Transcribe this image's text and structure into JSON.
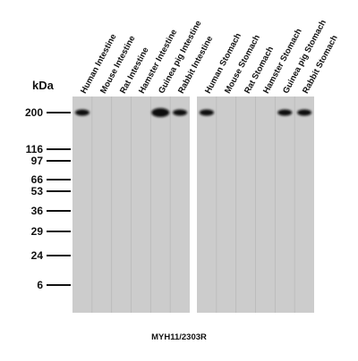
{
  "caption": "MYH11/2303R",
  "unit_label": "kDa",
  "markers": [
    "200",
    "116",
    "97",
    "66",
    "53",
    "36",
    "29",
    "24",
    "6"
  ],
  "panels": [
    {
      "name": "intestine",
      "lanes": [
        {
          "label": "Human Intestine",
          "band_200": "strong"
        },
        {
          "label": "Mouse Intestine",
          "band_200": "none"
        },
        {
          "label": "Rat Intestine",
          "band_200": "none"
        },
        {
          "label": "Hamster Intestine",
          "band_200": "none"
        },
        {
          "label": "Guinea pig Intestine",
          "band_200": "very strong"
        },
        {
          "label": "Rabbit Intestine",
          "band_200": "strong"
        }
      ]
    },
    {
      "name": "stomach",
      "lanes": [
        {
          "label": "Human Stomach",
          "band_200": "strong"
        },
        {
          "label": "Mouse Stomach",
          "band_200": "none"
        },
        {
          "label": "Rat Stomach",
          "band_200": "none"
        },
        {
          "label": "Hamster Stomach",
          "band_200": "none"
        },
        {
          "label": "Guinea pig Stomach",
          "band_200": "strong"
        },
        {
          "label": "Rabbit Stomach",
          "band_200": "strong"
        }
      ]
    }
  ],
  "colors": {
    "membrane": "#cccccc",
    "lane_line": "#b9b9b9",
    "band": "#0d0d0d"
  }
}
